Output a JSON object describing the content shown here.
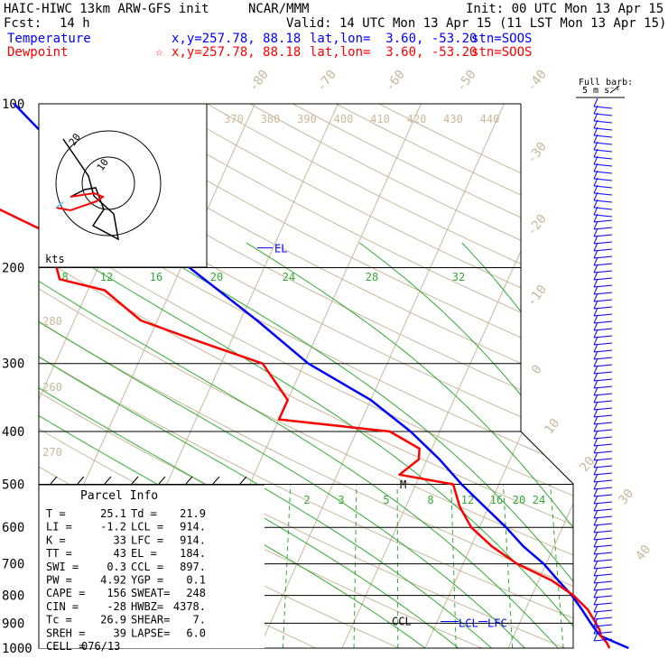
{
  "header": {
    "model": "HAIC-HIWC 13km ARW-GFS init",
    "org": "NCAR/MMM",
    "init": "Init: 00 UTC Mon 13 Apr 15",
    "fcst": "Fcst:",
    "fcst_hours": "14 h",
    "valid": "Valid: 14 UTC Mon 13 Apr 15 (11 LST Mon 13 Apr 15)"
  },
  "legend": {
    "temperature": {
      "label": "Temperature",
      "xy": "x,y=257.78, 88.18",
      "latlon": "lat,lon=  3.60, -53.20",
      "stn": "stn=SOOS",
      "color": "#0000ff"
    },
    "dewpoint": {
      "label": "Dewpoint",
      "xy": "x,y=257.78, 88.18",
      "latlon": "lat,lon=  3.60, -53.20",
      "stn": "stn=SOOS",
      "color": "#ff0000"
    }
  },
  "barb_scale": {
    "line1": "Full barb:",
    "line2": "5 m s⁻¹"
  },
  "hodograph": {
    "units_label": "kts",
    "ring_labels": [
      "10",
      "20"
    ]
  },
  "chart_data": {
    "type": "line",
    "title": "",
    "y_axis": {
      "label_values": [
        100,
        200,
        300,
        400,
        500,
        600,
        700,
        800,
        900,
        1000
      ],
      "scale": "log-pressure"
    },
    "x_axis": {
      "isotherm_labels": [
        -80,
        -70,
        -60,
        -50,
        -40,
        -30,
        -20,
        -10,
        0,
        10,
        20,
        30,
        40
      ]
    },
    "theta_labels_top": [
      370,
      380,
      390,
      400,
      410,
      420,
      430,
      440
    ],
    "theta_labels_left": [
      280,
      260,
      270
    ],
    "mixing_ratio_upper": [
      8,
      12,
      16,
      20,
      24,
      28,
      32
    ],
    "mixing_ratio_lower": [
      2,
      3,
      5,
      8,
      12,
      16,
      20,
      24
    ],
    "levels": {
      "EL": "EL",
      "M": "M",
      "CCL": "CCL",
      "LCL": "LCL",
      "LFC": "LFC"
    },
    "series": [
      {
        "name": "Temperature",
        "color": "#0000ff",
        "points": [
          [
            1000,
            24.5
          ],
          [
            975,
            22.5
          ],
          [
            950,
            20.5
          ],
          [
            925,
            19.5
          ],
          [
            900,
            18.6
          ],
          [
            850,
            16.8
          ],
          [
            800,
            14.8
          ],
          [
            750,
            12.3
          ],
          [
            700,
            9.7
          ],
          [
            650,
            6.3
          ],
          [
            600,
            3.2
          ],
          [
            550,
            -0.5
          ],
          [
            500,
            -4.5
          ],
          [
            450,
            -8.5
          ],
          [
            400,
            -13.5
          ],
          [
            350,
            -20
          ],
          [
            300,
            -29.5
          ],
          [
            250,
            -38
          ],
          [
            200,
            -49
          ],
          [
            175,
            -55
          ],
          [
            150,
            -62
          ],
          [
            125,
            -70
          ],
          [
            100,
            -79
          ]
        ]
      },
      {
        "name": "Dewpoint",
        "color": "#ff0000",
        "points": [
          [
            1000,
            22.2
          ],
          [
            975,
            21.5
          ],
          [
            950,
            20.5
          ],
          [
            925,
            20
          ],
          [
            900,
            19.2
          ],
          [
            850,
            17.5
          ],
          [
            800,
            15
          ],
          [
            750,
            11.5
          ],
          [
            700,
            6.5
          ],
          [
            650,
            2.5
          ],
          [
            600,
            -1
          ],
          [
            550,
            -3.5
          ],
          [
            500,
            -5.5
          ],
          [
            480,
            -12.5
          ],
          [
            450,
            -11
          ],
          [
            430,
            -11.5
          ],
          [
            400,
            -16
          ],
          [
            380,
            -30
          ],
          [
            350,
            -30
          ],
          [
            300,
            -35
          ],
          [
            270,
            -45
          ],
          [
            250,
            -52
          ],
          [
            220,
            -58
          ],
          [
            210,
            -64
          ],
          [
            200,
            -65
          ],
          [
            180,
            -67
          ],
          [
            170,
            -69
          ],
          [
            150,
            -78
          ],
          [
            140,
            -83
          ],
          [
            120,
            -85
          ],
          [
            100,
            -91
          ]
        ]
      }
    ],
    "parcel_info": {
      "title": "Parcel Info",
      "rows": [
        [
          "T  =",
          "25.1",
          "Td =",
          "21.9"
        ],
        [
          "LI =",
          "-1.2",
          "LCL =",
          "914."
        ],
        [
          "K  =",
          "33",
          "LFC =",
          "914."
        ],
        [
          "TT =",
          "43",
          "EL =",
          "184."
        ],
        [
          "SWI =",
          "0.3",
          "CCL =",
          "897."
        ],
        [
          "PW =",
          "4.92",
          "YGP =",
          "0.1"
        ],
        [
          "CAPE =",
          "156",
          "SWEAT=",
          "248"
        ],
        [
          "CIN =",
          "-28",
          "HWBZ=",
          "4378."
        ],
        [
          "Tc =",
          "26.9",
          "SHEAR=",
          "7."
        ],
        [
          "SREH =",
          "39",
          "LAPSE=",
          "6.0"
        ],
        [
          "CELL =",
          "076/13",
          "",
          ""
        ]
      ]
    }
  }
}
